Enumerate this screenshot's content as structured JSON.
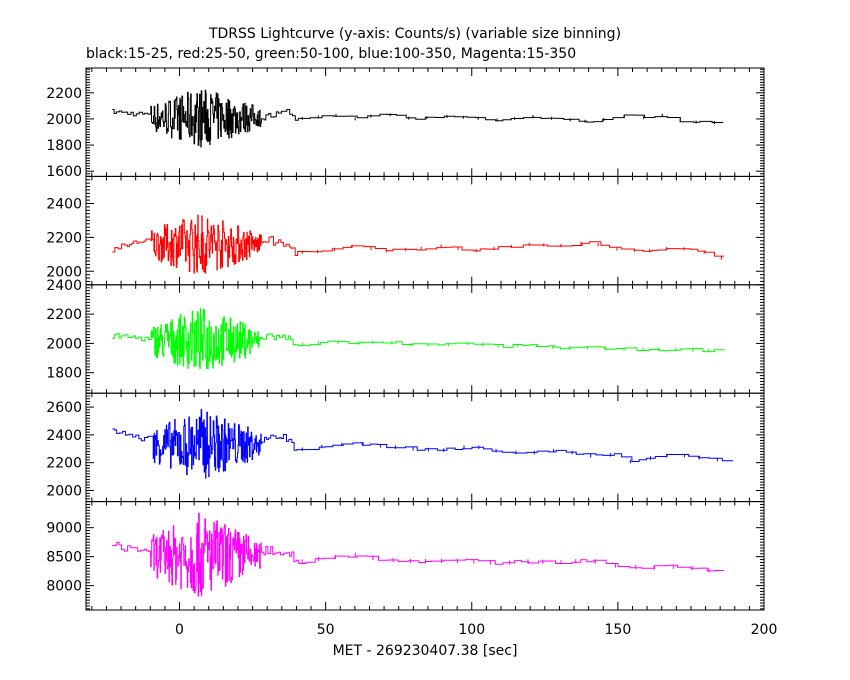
{
  "chart_data": {
    "type": "line",
    "title": "TDRSS Lightcurve (y-axis: Counts/s) (variable size binning)",
    "subtitle": "black:15-25, red:25-50, green:50-100, blue:100-350, Magenta:15-350",
    "xlabel": "MET - 269230407.38 [sec]",
    "ylabel": "",
    "xlim": [
      -32,
      200
    ],
    "x_ticks": [
      0,
      50,
      100,
      150,
      200
    ],
    "x_tick_labels": [
      "0",
      "50",
      "100",
      "150",
      "200"
    ],
    "grid": false,
    "legend": "none",
    "panels": [
      {
        "name": "black:15-25",
        "color": "#000000",
        "ylim": [
          1560,
          2390
        ],
        "y_ticks": [
          1600,
          1800,
          2000,
          2200
        ],
        "y_tick_labels": [
          "1600",
          "1800",
          "2000",
          "2200"
        ],
        "baseline": [
          [
            -23,
            2055
          ],
          [
            -15,
            2040
          ],
          [
            -8,
            2030
          ],
          [
            0,
            2030
          ],
          [
            10,
            2010
          ],
          [
            20,
            2000
          ],
          [
            25,
            1980
          ],
          [
            30,
            2020
          ],
          [
            38,
            2050
          ],
          [
            40,
            2000
          ],
          [
            55,
            2030
          ],
          [
            60,
            2000
          ],
          [
            70,
            2040
          ],
          [
            80,
            2000
          ],
          [
            90,
            2020
          ],
          [
            100,
            2010
          ],
          [
            110,
            1990
          ],
          [
            120,
            2020
          ],
          [
            130,
            2000
          ],
          [
            140,
            1980
          ],
          [
            150,
            2010
          ],
          [
            155,
            2040
          ],
          [
            160,
            2000
          ],
          [
            165,
            2030
          ],
          [
            170,
            1990
          ],
          [
            180,
            1970
          ],
          [
            186,
            1975
          ]
        ],
        "burst": [
          -10,
          25
        ],
        "burst_amplitude": 230,
        "burst_center": 2010
      },
      {
        "name": "red:25-50",
        "color": "#ff0000",
        "ylim": [
          1920,
          2560
        ],
        "y_ticks": [
          2000,
          2200,
          2400
        ],
        "y_tick_labels": [
          "2000",
          "2200",
          "2400"
        ],
        "baseline": [
          [
            -23,
            2130
          ],
          [
            -15,
            2170
          ],
          [
            -8,
            2200
          ],
          [
            0,
            2180
          ],
          [
            10,
            2160
          ],
          [
            20,
            2150
          ],
          [
            25,
            2170
          ],
          [
            30,
            2190
          ],
          [
            38,
            2140
          ],
          [
            40,
            2110
          ],
          [
            50,
            2120
          ],
          [
            60,
            2150
          ],
          [
            70,
            2120
          ],
          [
            80,
            2130
          ],
          [
            90,
            2150
          ],
          [
            100,
            2120
          ],
          [
            110,
            2140
          ],
          [
            120,
            2160
          ],
          [
            130,
            2150
          ],
          [
            140,
            2170
          ],
          [
            150,
            2130
          ],
          [
            160,
            2120
          ],
          [
            170,
            2140
          ],
          [
            180,
            2110
          ],
          [
            186,
            2075
          ]
        ],
        "burst": [
          -10,
          25
        ],
        "burst_amplitude": 190,
        "burst_center": 2160
      },
      {
        "name": "green:50-100",
        "color": "#00ff00",
        "ylim": [
          1660,
          2400
        ],
        "y_ticks": [
          1800,
          2000,
          2200,
          2400
        ],
        "y_tick_labels": [
          "1800",
          "2000",
          "2200",
          "2400"
        ],
        "baseline": [
          [
            -23,
            2050
          ],
          [
            -15,
            2040
          ],
          [
            -8,
            2030
          ],
          [
            0,
            2040
          ],
          [
            10,
            2020
          ],
          [
            20,
            2030
          ],
          [
            25,
            2040
          ],
          [
            30,
            2050
          ],
          [
            38,
            2030
          ],
          [
            40,
            1990
          ],
          [
            50,
            2010
          ],
          [
            60,
            2000
          ],
          [
            70,
            2010
          ],
          [
            80,
            1990
          ],
          [
            90,
            1990
          ],
          [
            100,
            2000
          ],
          [
            110,
            1980
          ],
          [
            120,
            1990
          ],
          [
            130,
            1970
          ],
          [
            140,
            1970
          ],
          [
            150,
            1960
          ],
          [
            160,
            1960
          ],
          [
            170,
            1960
          ],
          [
            180,
            1950
          ],
          [
            186,
            1950
          ]
        ],
        "burst": [
          -10,
          25
        ],
        "burst_amplitude": 230,
        "burst_center": 2020
      },
      {
        "name": "blue:100-350",
        "color": "#0000ff",
        "ylim": [
          1920,
          2700
        ],
        "y_ticks": [
          2000,
          2200,
          2400,
          2600
        ],
        "y_tick_labels": [
          "2000",
          "2200",
          "2400",
          "2600"
        ],
        "baseline": [
          [
            -23,
            2440
          ],
          [
            -15,
            2380
          ],
          [
            -8,
            2370
          ],
          [
            0,
            2340
          ],
          [
            10,
            2320
          ],
          [
            20,
            2300
          ],
          [
            25,
            2330
          ],
          [
            30,
            2400
          ],
          [
            38,
            2360
          ],
          [
            40,
            2290
          ],
          [
            50,
            2320
          ],
          [
            60,
            2340
          ],
          [
            70,
            2320
          ],
          [
            80,
            2300
          ],
          [
            90,
            2290
          ],
          [
            100,
            2320
          ],
          [
            110,
            2280
          ],
          [
            120,
            2270
          ],
          [
            130,
            2290
          ],
          [
            140,
            2250
          ],
          [
            150,
            2260
          ],
          [
            155,
            2200
          ],
          [
            160,
            2230
          ],
          [
            170,
            2260
          ],
          [
            180,
            2230
          ],
          [
            186,
            2220
          ]
        ],
        "burst": [
          -10,
          25
        ],
        "burst_amplitude": 260,
        "burst_center": 2330
      },
      {
        "name": "Magenta:15-350",
        "color": "#ff00ff",
        "ylim": [
          7580,
          9450
        ],
        "y_ticks": [
          8000,
          8500,
          9000
        ],
        "y_tick_labels": [
          "8000",
          "8500",
          "9000"
        ],
        "baseline": [
          [
            -23,
            8700
          ],
          [
            -15,
            8620
          ],
          [
            -8,
            8600
          ],
          [
            0,
            8580
          ],
          [
            10,
            8540
          ],
          [
            20,
            8500
          ],
          [
            25,
            8560
          ],
          [
            30,
            8620
          ],
          [
            38,
            8560
          ],
          [
            40,
            8400
          ],
          [
            50,
            8480
          ],
          [
            60,
            8530
          ],
          [
            70,
            8450
          ],
          [
            80,
            8420
          ],
          [
            90,
            8430
          ],
          [
            100,
            8420
          ],
          [
            110,
            8390
          ],
          [
            120,
            8420
          ],
          [
            130,
            8400
          ],
          [
            140,
            8440
          ],
          [
            150,
            8340
          ],
          [
            160,
            8310
          ],
          [
            170,
            8330
          ],
          [
            180,
            8280
          ],
          [
            186,
            8220
          ]
        ],
        "burst": [
          -10,
          25
        ],
        "burst_amplitude": 750,
        "burst_center": 8520
      }
    ]
  }
}
